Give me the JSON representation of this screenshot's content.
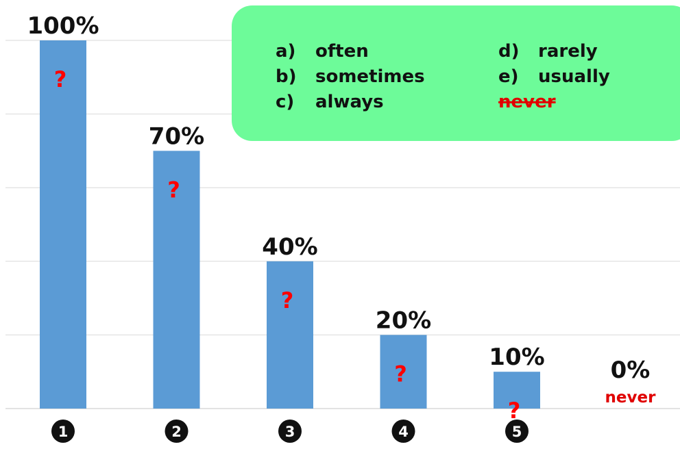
{
  "colors": {
    "bar": "#5b9bd5",
    "grid": "#d9d9d9",
    "question_mark": "#ff0000",
    "legend_bg": "#6dfb99",
    "never_text": "#e00000",
    "value_label": "#111111",
    "badge": "#111111"
  },
  "legend": {
    "items": [
      {
        "letter": "a)",
        "text": "often"
      },
      {
        "letter": "d)",
        "text": "rarely"
      },
      {
        "letter": "b)",
        "text": "sometimes"
      },
      {
        "letter": "e)",
        "text": "usually"
      },
      {
        "letter": "c)",
        "text": "always"
      },
      {
        "letter": "",
        "text": "never",
        "struck": true
      }
    ]
  },
  "chart_data": {
    "type": "bar",
    "categories": [
      "1",
      "2",
      "3",
      "4",
      "5",
      ""
    ],
    "values": [
      100,
      70,
      40,
      20,
      10,
      0
    ],
    "value_labels": [
      "100%",
      "70%",
      "40%",
      "20%",
      "10%",
      "0%"
    ],
    "bar_marks": [
      "?",
      "?",
      "?",
      "?",
      "?",
      ""
    ],
    "extra_labels": [
      "",
      "",
      "",
      "",
      "",
      "never"
    ],
    "ylim": [
      0,
      100
    ],
    "gridlines": [
      0,
      20,
      40,
      60,
      80,
      100
    ],
    "grid": true,
    "title": "",
    "xlabel": "",
    "ylabel": ""
  }
}
